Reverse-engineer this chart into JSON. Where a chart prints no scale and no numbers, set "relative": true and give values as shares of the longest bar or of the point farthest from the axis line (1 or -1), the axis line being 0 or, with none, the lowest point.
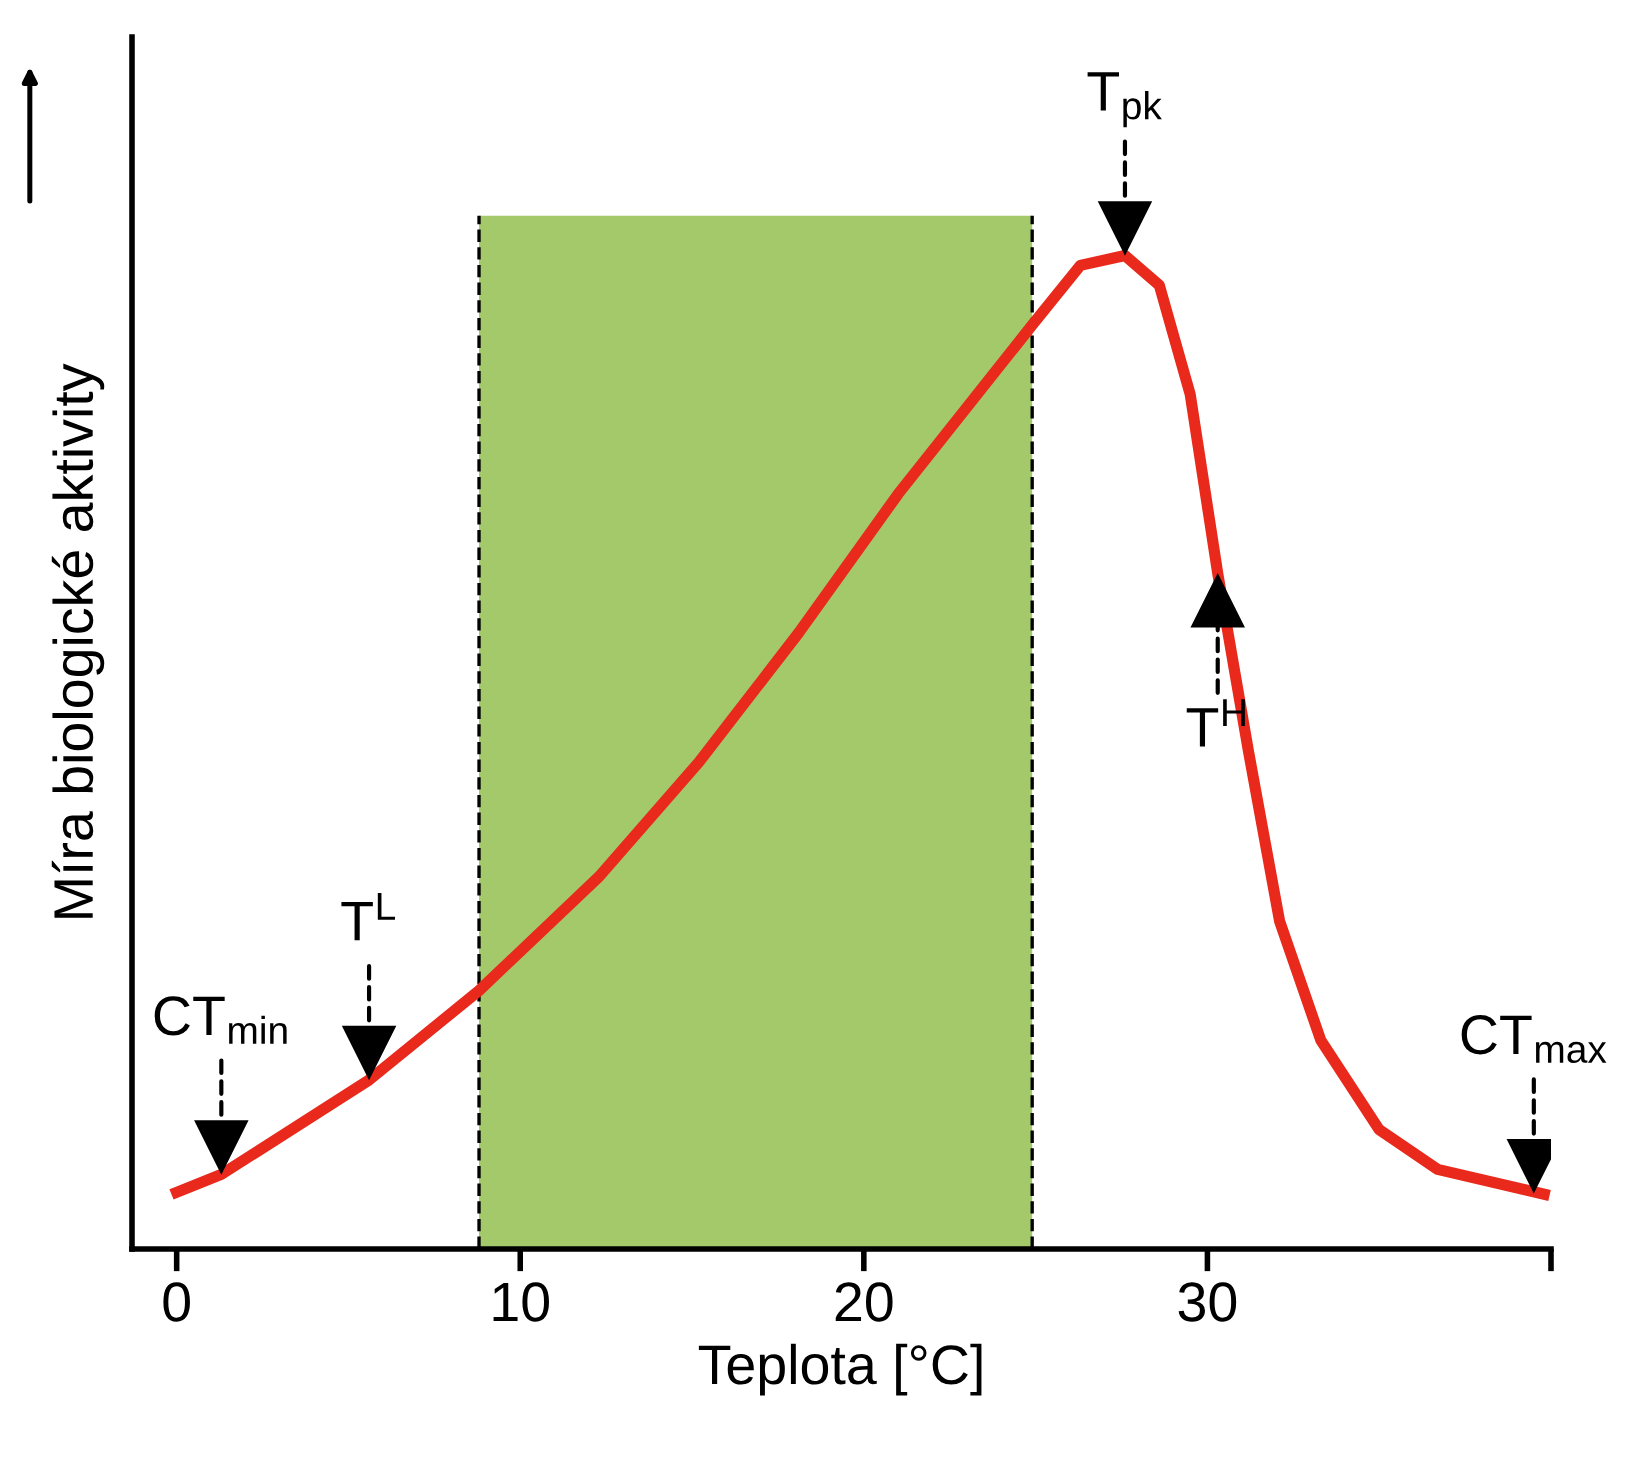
{
  "chart_data": {
    "type": "line",
    "relative": true,
    "xlabel": "Teplota [°C]",
    "ylabel": "Míra biologické aktivity",
    "xlim": [
      -1.3,
      40
    ],
    "xticks": [
      0,
      10,
      20,
      30,
      {
        "value": 40,
        "label": null
      }
    ],
    "x": [
      0,
      1.3,
      5.6,
      8.8,
      12.3,
      15.2,
      18.1,
      21,
      24.9,
      26.3,
      27.6,
      28.6,
      29.5,
      30.3,
      31.2,
      32.1,
      33.3,
      35,
      36.7,
      39.8
    ],
    "series": [
      {
        "color": "#e8291c",
        "values": [
          0.057,
          0.075,
          0.17,
          0.26,
          0.375,
          0.49,
          0.62,
          0.76,
          0.93,
          0.99,
          1.0,
          0.97,
          0.86,
          0.68,
          0.5,
          0.33,
          0.21,
          0.12,
          0.08,
          0.055
        ]
      }
    ],
    "bands": [
      {
        "axis": "x",
        "from": 8.8,
        "to": 24.9,
        "color": "#a3c96b"
      }
    ],
    "ref_lines": [
      {
        "axis": "x",
        "value": 8.8,
        "color": "#000000",
        "line_style": "dashed"
      },
      {
        "axis": "x",
        "value": 24.9,
        "color": "#000000",
        "line_style": "dashed"
      }
    ],
    "annotations": [
      {
        "text": "CT$_{min}$",
        "x": 1.3,
        "y": 0.075
      },
      {
        "text": "T$^{L}$",
        "x": 5.6,
        "y": 0.17
      },
      {
        "text": "T$_{pk}$",
        "x": 27.6,
        "y": 1.0
      },
      {
        "text": "T$^{H}$",
        "x": 30.3,
        "y": 0.68
      },
      {
        "text": "CT$_{max}$",
        "x": 39.5,
        "y": 0.056
      }
    ],
    "grid": false,
    "legend": false,
    "marker": "none",
    "line_style": "solid"
  }
}
